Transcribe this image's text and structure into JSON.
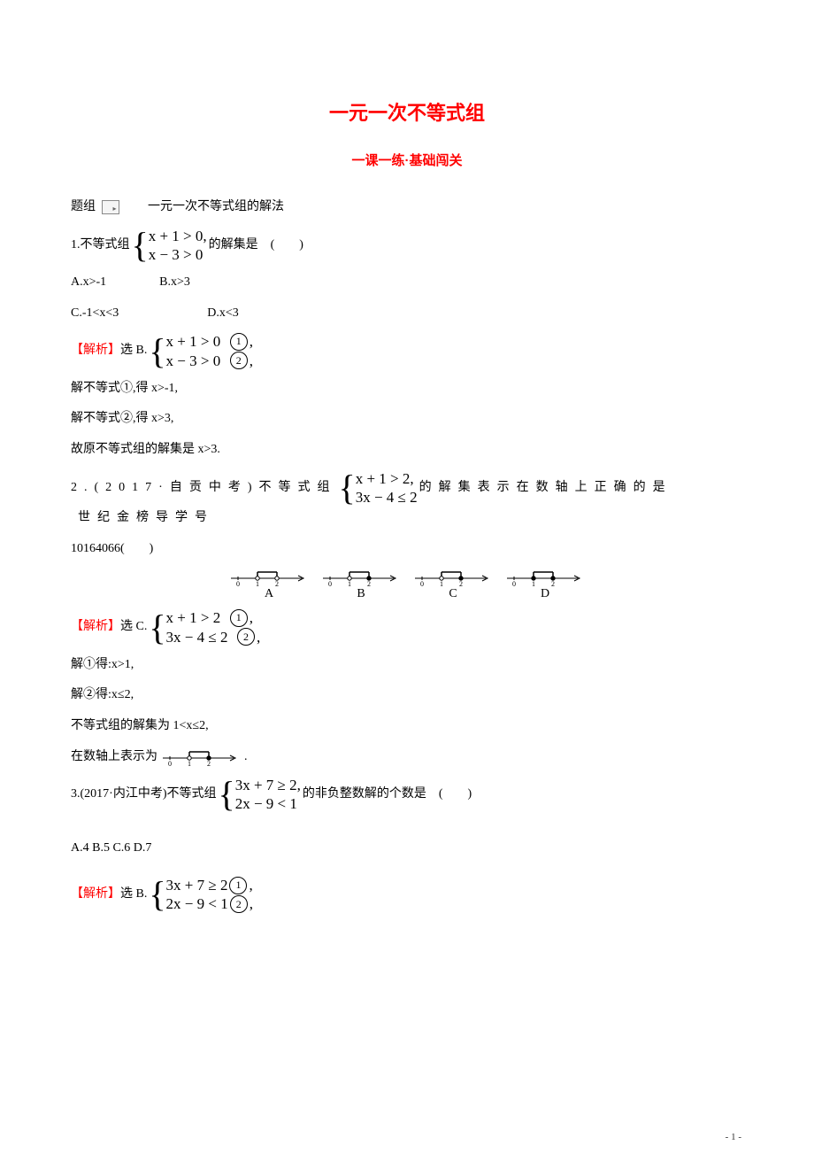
{
  "title": "一元一次不等式组",
  "subtitle": "一课一练·基础闯关",
  "group": {
    "prefix": "题组",
    "label": "一元一次不等式组的解法"
  },
  "q1": {
    "stem_pre": "1.不等式组",
    "sys": {
      "r1": "x + 1 > 0,",
      "r2": "x − 3 > 0"
    },
    "stem_post": "的解集是　(　　)",
    "optA": "A.x>-1",
    "optB": "B.x>3",
    "optC": "C.-1<x<3",
    "optD": "D.x<3",
    "ans_label": "【解析】",
    "ans_pick": "选 B.",
    "ans_sys": {
      "r1a": "x + 1 > 0",
      "r1b": ",",
      "r2a": "x − 3 > 0",
      "r2b": ","
    },
    "step1": "解不等式①,得 x>-1,",
    "step2": "解不等式②,得 x>3,",
    "step3": "故原不等式组的解集是 x>3."
  },
  "q2": {
    "stem_pre": "2.(2017·自贡中考)不等式组",
    "sys": {
      "r1": "x + 1 > 2,",
      "r2": "3x − 4 ≤ 2"
    },
    "stem_post_a": "的解集表示在数轴上正确的是",
    "stem_post_b": "世纪金榜导学号",
    "code": "10164066(　　)",
    "numberlines": {
      "ticks": [
        "0",
        "1",
        "2"
      ],
      "options": [
        "A",
        "B",
        "C",
        "D"
      ],
      "intervals": {
        "A": {
          "from": 1,
          "fromOpen": true,
          "to": 2,
          "toOpen": true
        },
        "B": {
          "from": 1,
          "fromOpen": true,
          "to": 2,
          "toOpen": false
        },
        "C": {
          "from": 1,
          "fromOpen": true,
          "to": 2,
          "toOpen": false
        },
        "D": {
          "from": 1,
          "fromOpen": false,
          "to": 2,
          "toOpen": false
        }
      },
      "axis_color": "#000000",
      "shade_color": "#000000"
    },
    "ans_label": "【解析】",
    "ans_pick": "选 C.",
    "ans_sys": {
      "r1a": "x + 1 > 2",
      "r1b": ",",
      "r2a": "3x − 4 ≤ 2",
      "r2b": ","
    },
    "step1": "解①得:x>1,",
    "step2": "解②得:x≤2,",
    "step3": "不等式组的解集为 1<x≤2,",
    "step4_pre": "在数轴上表示为",
    "step4_post": "."
  },
  "q3": {
    "stem_pre": "3.(2017·内江中考)不等式组",
    "sys": {
      "r1": "3x + 7 ≥ 2,",
      "r2": "2x − 9 < 1"
    },
    "stem_post": "的非负整数解的个数是　(　　)",
    "choices": "A.4 B.5 C.6 D.7",
    "ans_label": "【解析】",
    "ans_pick": "选 B.",
    "ans_sys": {
      "r1a": "3x + 7 ≥ 2",
      "r1b": ",",
      "r2a": "2x − 9 < 1",
      "r2b": ","
    }
  },
  "page_number": "- 1 -",
  "colors": {
    "title": "#ff0000",
    "text": "#000000",
    "background": "#ffffff"
  }
}
